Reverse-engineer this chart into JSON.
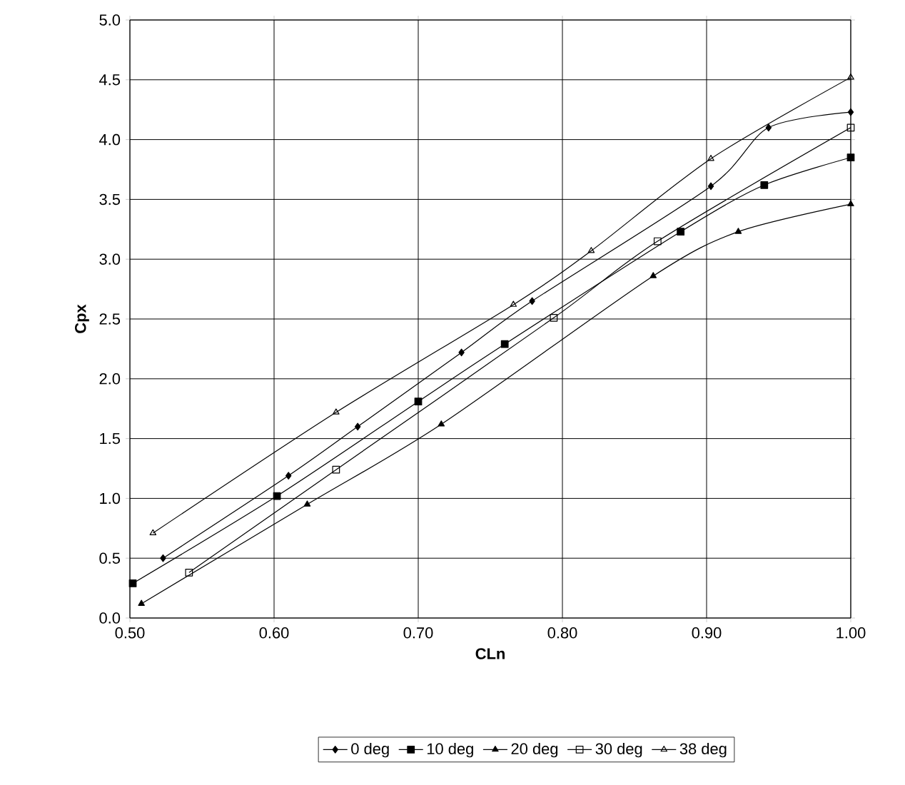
{
  "chart_data": {
    "type": "line",
    "xlabel": "CLn",
    "ylabel": "Cpx",
    "xlim": [
      0.5,
      1.0
    ],
    "ylim": [
      0,
      5
    ],
    "xticks": [
      {
        "value": 0.5,
        "label": "0.50"
      },
      {
        "value": 0.6,
        "label": "0.60"
      },
      {
        "value": 0.7,
        "label": "0.70"
      },
      {
        "value": 0.8,
        "label": "0.80"
      },
      {
        "value": 0.9,
        "label": "0.90"
      },
      {
        "value": 1.0,
        "label": "1.00"
      }
    ],
    "yticks": [
      {
        "value": 0,
        "label": "0.0"
      },
      0.5,
      {
        "value": 1,
        "label": "1.0"
      },
      1.5,
      {
        "value": 2,
        "label": "2.0"
      },
      2.5,
      {
        "value": 3,
        "label": "3.0"
      },
      3.5,
      {
        "value": 4,
        "label": "4.0"
      },
      4.5,
      {
        "value": 5,
        "label": "5.0"
      }
    ],
    "grid": true,
    "legend": "bottom",
    "line_style": "solid",
    "series": [
      {
        "name": "0 deg",
        "color": "#000000",
        "marker": "diamond",
        "x": [
          0.523,
          0.61,
          0.658,
          0.73,
          0.779,
          0.903,
          0.943,
          1.0
        ],
        "values": [
          0.5,
          1.19,
          1.6,
          2.22,
          2.65,
          3.61,
          4.1,
          4.23
        ]
      },
      {
        "name": "10 deg",
        "color": "#000000",
        "marker": "square",
        "x": [
          0.502,
          0.602,
          0.7,
          0.76,
          0.882,
          0.94,
          1.0
        ],
        "values": [
          0.29,
          1.02,
          1.81,
          2.29,
          3.23,
          3.62,
          3.85
        ]
      },
      {
        "name": "20 deg",
        "color": "#000000",
        "marker": "triangle",
        "x": [
          0.508,
          0.623,
          0.716,
          0.863,
          0.922,
          1.0
        ],
        "values": [
          0.12,
          0.95,
          1.62,
          2.86,
          3.23,
          3.46
        ]
      },
      {
        "name": "30 deg",
        "color": "#000000",
        "marker": "square",
        "x": [
          0.541,
          0.643,
          0.794,
          0.866,
          1.0
        ],
        "values": [
          0.38,
          1.24,
          2.51,
          3.15,
          4.1
        ]
      },
      {
        "name": "38 deg",
        "color": "#000000",
        "marker": "triangle",
        "x": [
          0.516,
          0.643,
          0.766,
          0.82,
          0.903,
          1.0
        ],
        "values": [
          0.71,
          1.72,
          2.62,
          3.07,
          3.84,
          4.52
        ]
      }
    ]
  }
}
